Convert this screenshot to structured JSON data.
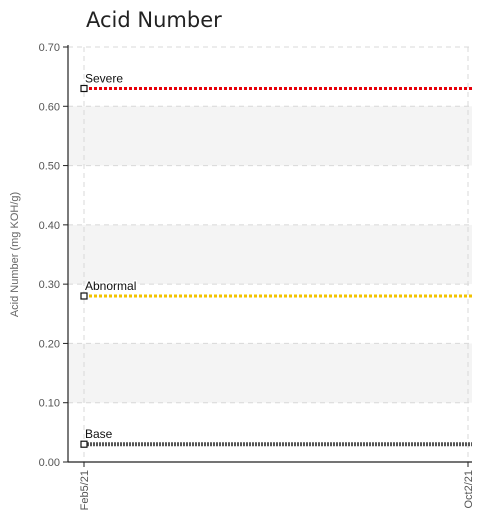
{
  "chart_data": {
    "type": "line",
    "title": "Acid Number",
    "xlabel": "",
    "ylabel": "Acid Number (mg KOH/g)",
    "ylim": [
      0,
      0.7
    ],
    "yticks": [
      "0.00",
      "0.10",
      "0.20",
      "0.30",
      "0.40",
      "0.50",
      "0.60",
      "0.70"
    ],
    "x_categories": [
      "Feb5/21",
      "Oct2/21"
    ],
    "grid": true,
    "series": [
      {
        "name": "Severe",
        "values": [
          0.63,
          0.63
        ],
        "color": "#e8000b",
        "style": "dotted"
      },
      {
        "name": "Abnormal",
        "values": [
          0.28,
          0.28
        ],
        "color": "#f2c300",
        "style": "dotted"
      },
      {
        "name": "Base",
        "values": [
          0.03,
          0.03
        ],
        "color": "#555555",
        "style": "dotted"
      }
    ],
    "band_color": "#f4f4f4"
  }
}
